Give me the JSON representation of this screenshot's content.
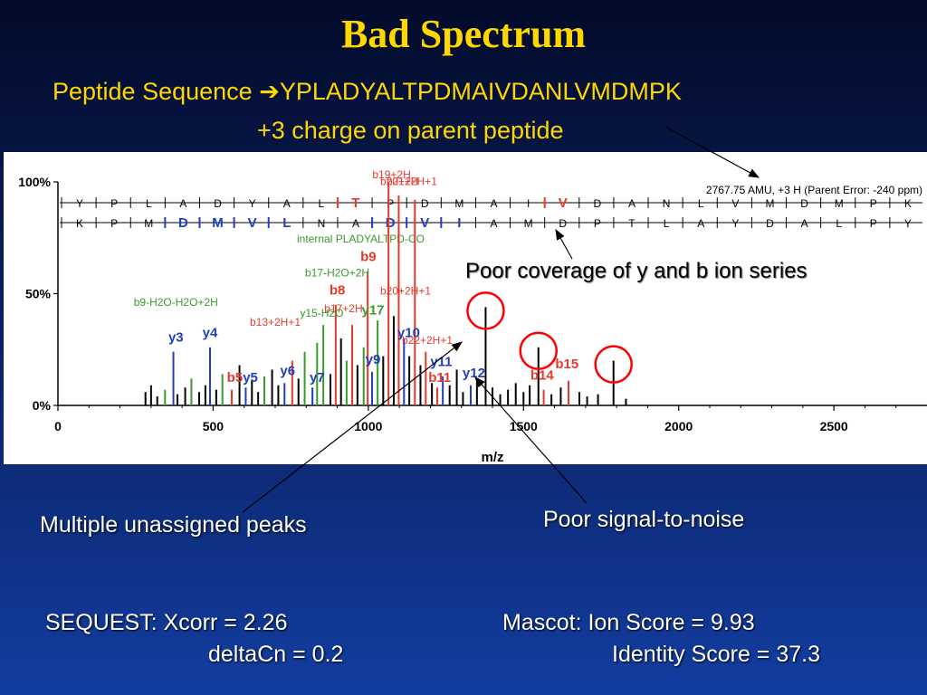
{
  "slide": {
    "title": "Bad Spectrum",
    "peptide_prefix": "Peptide Sequence ",
    "peptide_sequence": "YPLADYALTPDMAIVDANLVMDMPK",
    "charge_line": "+3 charge on parent peptide",
    "annotation_coverage": "Poor coverage of y and b ion series",
    "annotation_unassigned": "Multiple unassigned peaks",
    "annotation_signal": "Poor signal-to-noise",
    "sequest_line1": "SEQUEST:  Xcorr = 2.26",
    "sequest_line2": "deltaCn = 0.2",
    "mascot_line1": "Mascot:  Ion Score = 9.93",
    "mascot_line2": "Identity Score = 37.3"
  },
  "colors": {
    "title": "#ffd700",
    "b_ion": "#e8382b",
    "y_ion": "#1f3fbf",
    "other_ion": "#3a9a2a",
    "unassigned": "#000000",
    "circle": "#ff0000"
  },
  "chart_data": {
    "type": "bar",
    "xlabel": "m/z",
    "ylabel": "",
    "xlim": [
      0,
      2800
    ],
    "ylim": [
      0,
      100
    ],
    "x_ticks": [
      "0",
      "500",
      "1000",
      "1500",
      "2000",
      "2500"
    ],
    "x_tick_values": [
      0,
      500,
      1000,
      1500,
      2000,
      2500
    ],
    "y_ticks": [
      "0%",
      "50%",
      "100%"
    ],
    "y_tick_values": [
      0,
      50,
      100
    ],
    "parent_info": "2767.75 AMU, +3 H (Parent Error: -240 ppm)",
    "internal_fragment_label": "internal PLADYALTPD-CO",
    "y_series_residues": [
      "Y",
      "P",
      "L",
      "A",
      "D",
      "Y",
      "A",
      "L",
      "T",
      "P",
      "D",
      "M",
      "A",
      "I",
      "V",
      "D",
      "A",
      "N",
      "L",
      "V",
      "M",
      "D",
      "M",
      "P",
      "K"
    ],
    "y_series_matched": [
      8,
      14
    ],
    "b_series_residues": [
      "K",
      "P",
      "M",
      "D",
      "M",
      "V",
      "L",
      "N",
      "A",
      "D",
      "V",
      "I",
      "A",
      "M",
      "D",
      "P",
      "T",
      "L",
      "A",
      "Y",
      "D",
      "A",
      "L",
      "P",
      "Y"
    ],
    "b_series_matched": [
      3,
      4,
      5,
      6,
      9,
      10,
      11
    ],
    "peak_labels": [
      {
        "label": "b19+2H",
        "x": 1075,
        "y": 100,
        "ion": "b"
      },
      {
        "label": "b20+2H",
        "x": 1100,
        "y": 97,
        "ion": "b"
      },
      {
        "label": "b21+2H+1",
        "x": 1140,
        "y": 97,
        "ion": "b"
      },
      {
        "label": "b9",
        "x": 1000,
        "y": 63,
        "ion": "b"
      },
      {
        "label": "b17-H2O+2H",
        "x": 900,
        "y": 56,
        "ion": "other"
      },
      {
        "label": "b8",
        "x": 900,
        "y": 48,
        "ion": "b"
      },
      {
        "label": "b20+2H+1",
        "x": 1120,
        "y": 48,
        "ion": "b"
      },
      {
        "label": "b9-H2O-H2O+2H",
        "x": 380,
        "y": 43,
        "ion": "other"
      },
      {
        "label": "b17+2H",
        "x": 920,
        "y": 40,
        "ion": "b"
      },
      {
        "label": "y17",
        "x": 1015,
        "y": 39,
        "ion": "other"
      },
      {
        "label": "y15-H2O",
        "x": 850,
        "y": 38,
        "ion": "other"
      },
      {
        "label": "b13+2H+1",
        "x": 700,
        "y": 34,
        "ion": "b"
      },
      {
        "label": "y3",
        "x": 380,
        "y": 27,
        "ion": "y"
      },
      {
        "label": "y4",
        "x": 490,
        "y": 29,
        "ion": "y"
      },
      {
        "label": "y10",
        "x": 1130,
        "y": 29,
        "ion": "y"
      },
      {
        "label": "b22+2H+1",
        "x": 1190,
        "y": 26,
        "ion": "b"
      },
      {
        "label": "y9",
        "x": 1015,
        "y": 17,
        "ion": "y"
      },
      {
        "label": "y11",
        "x": 1235,
        "y": 16,
        "ion": "y"
      },
      {
        "label": "y6",
        "x": 740,
        "y": 12,
        "ion": "y"
      },
      {
        "label": "y12",
        "x": 1340,
        "y": 11,
        "ion": "y"
      },
      {
        "label": "b15",
        "x": 1640,
        "y": 15,
        "ion": "b"
      },
      {
        "label": "b5",
        "x": 570,
        "y": 9,
        "ion": "b"
      },
      {
        "label": "y5",
        "x": 620,
        "y": 9,
        "ion": "y"
      },
      {
        "label": "y7",
        "x": 835,
        "y": 9,
        "ion": "y"
      },
      {
        "label": "b11",
        "x": 1230,
        "y": 9,
        "ion": "b"
      },
      {
        "label": "b14",
        "x": 1560,
        "y": 10,
        "ion": "b"
      }
    ],
    "peaks": [
      {
        "x": 282,
        "y": 6,
        "ion": "u"
      },
      {
        "x": 300,
        "y": 9,
        "ion": "u"
      },
      {
        "x": 320,
        "y": 4,
        "ion": "u"
      },
      {
        "x": 345,
        "y": 7,
        "ion": "o"
      },
      {
        "x": 372,
        "y": 24,
        "ion": "y"
      },
      {
        "x": 385,
        "y": 5,
        "ion": "u"
      },
      {
        "x": 410,
        "y": 8,
        "ion": "u"
      },
      {
        "x": 430,
        "y": 12,
        "ion": "o"
      },
      {
        "x": 455,
        "y": 6,
        "ion": "u"
      },
      {
        "x": 475,
        "y": 9,
        "ion": "u"
      },
      {
        "x": 490,
        "y": 26,
        "ion": "y"
      },
      {
        "x": 510,
        "y": 7,
        "ion": "u"
      },
      {
        "x": 530,
        "y": 14,
        "ion": "o"
      },
      {
        "x": 560,
        "y": 7,
        "ion": "b"
      },
      {
        "x": 585,
        "y": 18,
        "ion": "u"
      },
      {
        "x": 605,
        "y": 8,
        "ion": "y"
      },
      {
        "x": 625,
        "y": 11,
        "ion": "u"
      },
      {
        "x": 645,
        "y": 6,
        "ion": "u"
      },
      {
        "x": 665,
        "y": 13,
        "ion": "o"
      },
      {
        "x": 690,
        "y": 16,
        "ion": "u"
      },
      {
        "x": 710,
        "y": 9,
        "ion": "u"
      },
      {
        "x": 730,
        "y": 10,
        "ion": "y"
      },
      {
        "x": 755,
        "y": 20,
        "ion": "b"
      },
      {
        "x": 775,
        "y": 12,
        "ion": "u"
      },
      {
        "x": 795,
        "y": 24,
        "ion": "o"
      },
      {
        "x": 820,
        "y": 8,
        "ion": "y"
      },
      {
        "x": 835,
        "y": 28,
        "ion": "o"
      },
      {
        "x": 855,
        "y": 36,
        "ion": "o"
      },
      {
        "x": 878,
        "y": 14,
        "ion": "u"
      },
      {
        "x": 895,
        "y": 45,
        "ion": "b"
      },
      {
        "x": 912,
        "y": 30,
        "ion": "u"
      },
      {
        "x": 930,
        "y": 20,
        "ion": "o"
      },
      {
        "x": 948,
        "y": 36,
        "ion": "b"
      },
      {
        "x": 965,
        "y": 18,
        "ion": "u"
      },
      {
        "x": 985,
        "y": 26,
        "ion": "o"
      },
      {
        "x": 998,
        "y": 60,
        "ion": "b"
      },
      {
        "x": 1012,
        "y": 15,
        "ion": "y"
      },
      {
        "x": 1030,
        "y": 38,
        "ion": "o"
      },
      {
        "x": 1048,
        "y": 22,
        "ion": "u"
      },
      {
        "x": 1065,
        "y": 100,
        "ion": "b"
      },
      {
        "x": 1082,
        "y": 40,
        "ion": "u"
      },
      {
        "x": 1098,
        "y": 94,
        "ion": "b"
      },
      {
        "x": 1115,
        "y": 30,
        "ion": "y"
      },
      {
        "x": 1132,
        "y": 22,
        "ion": "u"
      },
      {
        "x": 1150,
        "y": 92,
        "ion": "b"
      },
      {
        "x": 1168,
        "y": 18,
        "ion": "u"
      },
      {
        "x": 1185,
        "y": 24,
        "ion": "b"
      },
      {
        "x": 1205,
        "y": 10,
        "ion": "u"
      },
      {
        "x": 1222,
        "y": 8,
        "ion": "b"
      },
      {
        "x": 1240,
        "y": 13,
        "ion": "y"
      },
      {
        "x": 1262,
        "y": 9,
        "ion": "u"
      },
      {
        "x": 1285,
        "y": 16,
        "ion": "u"
      },
      {
        "x": 1305,
        "y": 6,
        "ion": "u"
      },
      {
        "x": 1330,
        "y": 9,
        "ion": "y"
      },
      {
        "x": 1350,
        "y": 12,
        "ion": "u"
      },
      {
        "x": 1378,
        "y": 44,
        "ion": "u"
      },
      {
        "x": 1400,
        "y": 8,
        "ion": "u"
      },
      {
        "x": 1425,
        "y": 5,
        "ion": "u"
      },
      {
        "x": 1450,
        "y": 7,
        "ion": "u"
      },
      {
        "x": 1475,
        "y": 10,
        "ion": "u"
      },
      {
        "x": 1500,
        "y": 6,
        "ion": "u"
      },
      {
        "x": 1520,
        "y": 9,
        "ion": "u"
      },
      {
        "x": 1548,
        "y": 26,
        "ion": "u"
      },
      {
        "x": 1565,
        "y": 7,
        "ion": "b"
      },
      {
        "x": 1590,
        "y": 5,
        "ion": "u"
      },
      {
        "x": 1620,
        "y": 8,
        "ion": "u"
      },
      {
        "x": 1645,
        "y": 11,
        "ion": "b"
      },
      {
        "x": 1680,
        "y": 6,
        "ion": "u"
      },
      {
        "x": 1705,
        "y": 4,
        "ion": "u"
      },
      {
        "x": 1740,
        "y": 5,
        "ion": "u"
      },
      {
        "x": 1790,
        "y": 20,
        "ion": "u"
      },
      {
        "x": 1830,
        "y": 3,
        "ion": "u"
      }
    ],
    "circled_peaks_x": [
      1378,
      1548,
      1790
    ]
  }
}
